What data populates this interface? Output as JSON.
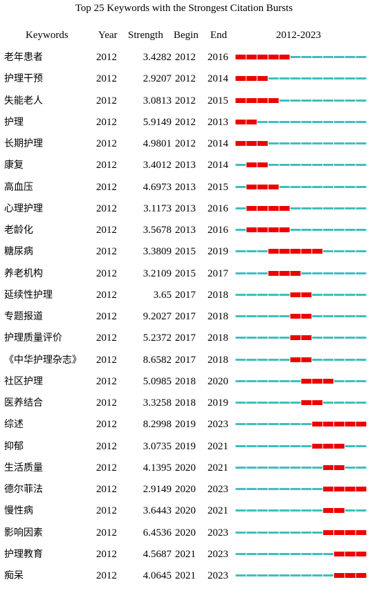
{
  "chart_data": {
    "type": "table",
    "title": "Top 25 Keywords with the Strongest Citation Bursts",
    "columns": [
      "Keywords",
      "Year",
      "Strength",
      "Begin",
      "End",
      "2012-2023"
    ],
    "range_start": 2012,
    "range_end": 2023,
    "colors": {
      "burst": "#ee0000",
      "base": "#3dbfbd"
    },
    "rows": [
      {
        "keyword": "老年患者",
        "year": "2012",
        "strength": "3.4282",
        "begin": "2012",
        "end": "2016"
      },
      {
        "keyword": "护理干预",
        "year": "2012",
        "strength": "2.9207",
        "begin": "2012",
        "end": "2014"
      },
      {
        "keyword": "失能老人",
        "year": "2012",
        "strength": "3.0813",
        "begin": "2012",
        "end": "2015"
      },
      {
        "keyword": "护理",
        "year": "2012",
        "strength": "5.9149",
        "begin": "2012",
        "end": "2013"
      },
      {
        "keyword": "长期护理",
        "year": "2012",
        "strength": "4.9801",
        "begin": "2012",
        "end": "2014"
      },
      {
        "keyword": "康复",
        "year": "2012",
        "strength": "3.4012",
        "begin": "2013",
        "end": "2014"
      },
      {
        "keyword": "高血压",
        "year": "2012",
        "strength": "4.6973",
        "begin": "2013",
        "end": "2015"
      },
      {
        "keyword": "心理护理",
        "year": "2012",
        "strength": "3.1173",
        "begin": "2013",
        "end": "2016"
      },
      {
        "keyword": "老龄化",
        "year": "2012",
        "strength": "3.5678",
        "begin": "2013",
        "end": "2016"
      },
      {
        "keyword": "糖尿病",
        "year": "2012",
        "strength": "3.3809",
        "begin": "2015",
        "end": "2019"
      },
      {
        "keyword": "养老机构",
        "year": "2012",
        "strength": "3.2109",
        "begin": "2015",
        "end": "2017"
      },
      {
        "keyword": "延续性护理",
        "year": "2012",
        "strength": "3.65",
        "begin": "2017",
        "end": "2018"
      },
      {
        "keyword": "专题报道",
        "year": "2012",
        "strength": "9.2027",
        "begin": "2017",
        "end": "2018"
      },
      {
        "keyword": "护理质量评价",
        "year": "2012",
        "strength": "5.2372",
        "begin": "2017",
        "end": "2018"
      },
      {
        "keyword": "《中华护理杂志》",
        "year": "2012",
        "strength": "8.6582",
        "begin": "2017",
        "end": "2018"
      },
      {
        "keyword": "社区护理",
        "year": "2012",
        "strength": "5.0985",
        "begin": "2018",
        "end": "2020"
      },
      {
        "keyword": "医养结合",
        "year": "2012",
        "strength": "3.3258",
        "begin": "2018",
        "end": "2019"
      },
      {
        "keyword": "综述",
        "year": "2012",
        "strength": "8.2998",
        "begin": "2019",
        "end": "2023"
      },
      {
        "keyword": "抑郁",
        "year": "2012",
        "strength": "3.0735",
        "begin": "2019",
        "end": "2021"
      },
      {
        "keyword": "生活质量",
        "year": "2012",
        "strength": "4.1395",
        "begin": "2020",
        "end": "2021"
      },
      {
        "keyword": "德尔菲法",
        "year": "2012",
        "strength": "2.9149",
        "begin": "2020",
        "end": "2023"
      },
      {
        "keyword": "慢性病",
        "year": "2012",
        "strength": "3.6443",
        "begin": "2020",
        "end": "2021"
      },
      {
        "keyword": "影响因素",
        "year": "2012",
        "strength": "6.4536",
        "begin": "2020",
        "end": "2023"
      },
      {
        "keyword": "护理教育",
        "year": "2012",
        "strength": "4.5687",
        "begin": "2021",
        "end": "2023"
      },
      {
        "keyword": "痴呆",
        "year": "2012",
        "strength": "4.0645",
        "begin": "2021",
        "end": "2023"
      }
    ]
  }
}
